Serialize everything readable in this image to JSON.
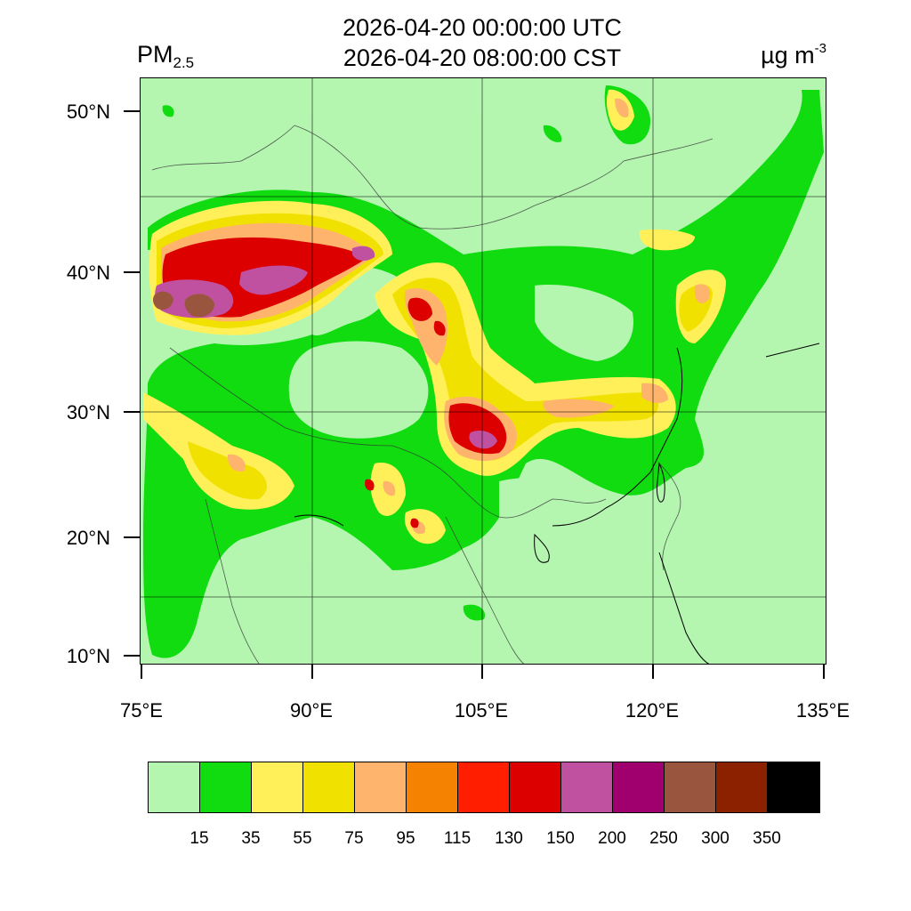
{
  "title": {
    "utc": "2026-04-20 00:00:00 UTC",
    "cst": "2026-04-20 08:00:00 CST"
  },
  "variable": {
    "name": "PM",
    "subscript": "2.5"
  },
  "units": {
    "base": "µg m",
    "exponent": "-3"
  },
  "latitude_labels": [
    "50°N",
    "40°N",
    "30°N",
    "20°N",
    "10°N"
  ],
  "longitude_labels": [
    "75°E",
    "90°E",
    "105°E",
    "120°E",
    "135°E"
  ],
  "colorbar": {
    "colors": [
      "#b4f6b0",
      "#10dc10",
      "#fff05a",
      "#f0e100",
      "#ffb46e",
      "#f58200",
      "#ff1e00",
      "#dc0000",
      "#c050a0",
      "#a0006e",
      "#9a553e",
      "#8c2100",
      "#000000"
    ],
    "labels": [
      "15",
      "35",
      "55",
      "75",
      "95",
      "115",
      "130",
      "150",
      "200",
      "250",
      "300",
      "350"
    ]
  }
}
